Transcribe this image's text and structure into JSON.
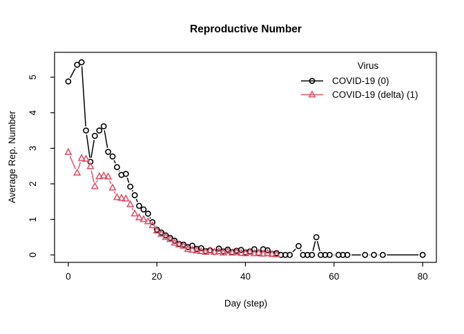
{
  "chart_data": {
    "type": "line",
    "title": "Reproductive Number",
    "xlabel": "Day (step)",
    "ylabel": "Average Rep. Number",
    "x_ticks": [
      0,
      20,
      40,
      60,
      80
    ],
    "y_ticks": [
      0,
      1,
      2,
      3,
      4,
      5
    ],
    "xlim": [
      -3.1,
      83.1
    ],
    "ylim": [
      -0.21,
      5.7
    ],
    "grid": false,
    "legend": {
      "title": "Virus",
      "position": "top-right"
    },
    "series": [
      {
        "name": "COVID-19 (0)",
        "color": "#000000",
        "marker": "circle-open",
        "line_style": "solid",
        "points": [
          [
            0,
            4.88
          ],
          [
            2,
            5.35
          ],
          [
            3,
            5.42
          ],
          [
            4,
            3.5
          ],
          [
            5,
            2.62
          ],
          [
            6,
            3.35
          ],
          [
            7,
            3.5
          ],
          [
            8,
            3.62
          ],
          [
            9,
            2.9
          ],
          [
            10,
            2.77
          ],
          [
            11,
            2.47
          ],
          [
            12,
            2.25
          ],
          [
            13,
            2.28
          ],
          [
            14,
            1.92
          ],
          [
            15,
            1.68
          ],
          [
            16,
            1.38
          ],
          [
            17,
            1.28
          ],
          [
            18,
            1.16
          ],
          [
            19,
            0.92
          ],
          [
            20,
            0.71
          ],
          [
            21,
            0.63
          ],
          [
            22,
            0.55
          ],
          [
            23,
            0.48
          ],
          [
            24,
            0.4
          ],
          [
            25,
            0.31
          ],
          [
            26,
            0.29
          ],
          [
            27,
            0.22
          ],
          [
            28,
            0.26
          ],
          [
            29,
            0.17
          ],
          [
            30,
            0.19
          ],
          [
            31,
            0.11
          ],
          [
            32,
            0.13
          ],
          [
            33,
            0.08
          ],
          [
            34,
            0.18
          ],
          [
            35,
            0.1
          ],
          [
            36,
            0.15
          ],
          [
            37,
            0.08
          ],
          [
            38,
            0.12
          ],
          [
            39,
            0.14
          ],
          [
            40,
            0.07
          ],
          [
            41,
            0.1
          ],
          [
            42,
            0.16
          ],
          [
            43,
            0.05
          ],
          [
            44,
            0.16
          ],
          [
            45,
            0.13
          ],
          [
            46,
            0.03
          ],
          [
            47,
            0.05
          ],
          [
            48,
            0
          ],
          [
            49,
            0
          ],
          [
            50,
            0
          ],
          [
            52,
            0.25
          ],
          [
            53,
            0
          ],
          [
            54,
            0
          ],
          [
            55,
            0
          ],
          [
            56,
            0.5
          ],
          [
            57,
            0
          ],
          [
            58,
            0
          ],
          [
            59,
            0
          ],
          [
            61,
            0
          ],
          [
            62,
            0
          ],
          [
            63,
            0
          ],
          [
            67,
            0
          ],
          [
            69,
            0
          ],
          [
            71,
            0
          ],
          [
            80,
            0
          ]
        ]
      },
      {
        "name": "COVID-19 (delta) (1)",
        "color": "#DF536B",
        "marker": "triangle-open",
        "line_style": "solid",
        "points": [
          [
            0,
            2.89
          ],
          [
            2,
            2.31
          ],
          [
            3,
            2.72
          ],
          [
            4,
            2.7
          ],
          [
            5,
            2.49
          ],
          [
            6,
            1.93
          ],
          [
            7,
            2.21
          ],
          [
            8,
            2.23
          ],
          [
            9,
            2.2
          ],
          [
            10,
            1.89
          ],
          [
            11,
            1.62
          ],
          [
            12,
            1.6
          ],
          [
            13,
            1.58
          ],
          [
            14,
            1.42
          ],
          [
            15,
            1.16
          ],
          [
            16,
            1.05
          ],
          [
            17,
            1.0
          ],
          [
            18,
            0.94
          ],
          [
            19,
            0.83
          ],
          [
            20,
            0.68
          ],
          [
            21,
            0.59
          ],
          [
            22,
            0.5
          ],
          [
            23,
            0.44
          ],
          [
            24,
            0.34
          ],
          [
            25,
            0.29
          ],
          [
            26,
            0.25
          ],
          [
            27,
            0.16
          ],
          [
            28,
            0.14
          ],
          [
            29,
            0.12
          ],
          [
            30,
            0.1
          ],
          [
            31,
            0.08
          ],
          [
            32,
            0.12
          ],
          [
            33,
            0.08
          ],
          [
            34,
            0.1
          ],
          [
            35,
            0.06
          ],
          [
            36,
            0.1
          ],
          [
            37,
            0.06
          ],
          [
            38,
            0.08
          ],
          [
            39,
            0.05
          ],
          [
            40,
            0.04
          ],
          [
            41,
            0.08
          ],
          [
            42,
            0.04
          ],
          [
            43,
            0.06
          ],
          [
            44,
            0.03
          ],
          [
            45,
            0.05
          ],
          [
            46,
            0.02
          ],
          [
            47,
            0.01
          ]
        ]
      }
    ]
  }
}
